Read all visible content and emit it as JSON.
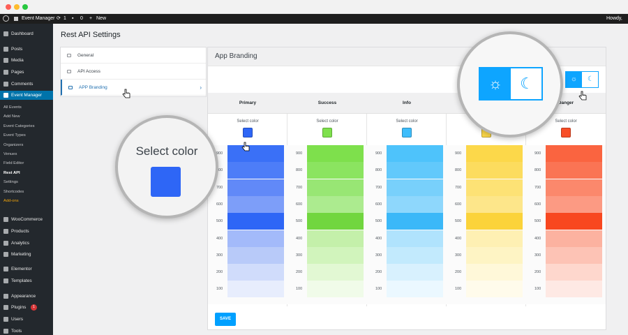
{
  "adminbar": {
    "site_name": "Event Manager",
    "updates": "1",
    "comments": "0",
    "new_label": "New",
    "howdy": "Howdy, ad"
  },
  "sidebar": {
    "items": [
      {
        "label": "Dashboard",
        "icon": "dashboard-icon"
      },
      {
        "label": "Posts",
        "icon": "pin-icon"
      },
      {
        "label": "Media",
        "icon": "media-icon"
      },
      {
        "label": "Pages",
        "icon": "pages-icon"
      },
      {
        "label": "Comments",
        "icon": "comment-icon"
      },
      {
        "label": "Event Manager",
        "icon": "calendar-icon",
        "active": true
      },
      {
        "label": "WooCommerce",
        "icon": "woocommerce-icon"
      },
      {
        "label": "Products",
        "icon": "products-icon"
      },
      {
        "label": "Analytics",
        "icon": "analytics-icon"
      },
      {
        "label": "Marketing",
        "icon": "marketing-icon"
      },
      {
        "label": "Elementor",
        "icon": "elementor-icon"
      },
      {
        "label": "Templates",
        "icon": "templates-icon"
      },
      {
        "label": "Appearance",
        "icon": "appearance-icon"
      },
      {
        "label": "Plugins",
        "icon": "plugins-icon",
        "badge": "1"
      },
      {
        "label": "Users",
        "icon": "users-icon"
      },
      {
        "label": "Tools",
        "icon": "tools-icon"
      }
    ],
    "submenu": [
      "All Events",
      "Add New",
      "Event Categories",
      "Event Types",
      "Organizers",
      "Venues",
      "Field Editor",
      "Rest API",
      "Settings",
      "Shortcodes",
      "Add-ons"
    ]
  },
  "page_title": "Rest API Settings",
  "tabs": [
    {
      "label": "General",
      "icon": "settings-icon"
    },
    {
      "label": "API Access",
      "icon": "api-icon"
    },
    {
      "label": "APP Branding",
      "icon": "mobile-icon",
      "active": true
    }
  ],
  "panel": {
    "title": "App Branding",
    "save_label": "SAVE"
  },
  "theme_toggle": {
    "light_icon": "sun-icon",
    "dark_icon": "moon-icon",
    "selected": "light"
  },
  "select_color_label": "Select color",
  "palettes": [
    {
      "name": "Primary",
      "color": "#2e66f6",
      "shades": {
        "900": "#3a70f7",
        "800": "#4d7df8",
        "700": "#6189f8",
        "600": "#7d9ef9",
        "500": "#2e66f6",
        "400": "#a3bafa",
        "300": "#b8caf9",
        "200": "#d0dcfb",
        "100": "#e7edfd"
      }
    },
    {
      "name": "Success",
      "color": "#7ee04c",
      "shades": {
        "900": "#7ee04c",
        "800": "#8be460",
        "700": "#98e674",
        "600": "#aceb8f",
        "500": "#71d63f",
        "400": "#c4f0aa",
        "300": "#d1f4bc",
        "200": "#e2f8d3",
        "100": "#f0fbe9"
      }
    },
    {
      "name": "Info",
      "color": "#3ebdfb",
      "shades": {
        "900": "#4ec3fb",
        "800": "#62c9fb",
        "700": "#78d0fb",
        "600": "#8ed7fc",
        "500": "#3bb8f8",
        "400": "#b0e3fd",
        "300": "#c2eafd",
        "200": "#d8f1fe",
        "100": "#ebf8ff"
      }
    },
    {
      "name": "",
      "color": "#fcd84a",
      "shades": {
        "900": "#fcd84a",
        "800": "#fcdc5e",
        "700": "#fde275",
        "600": "#fde68a",
        "500": "#fbd33a",
        "400": "#fef0b3",
        "300": "#fef4c4",
        "200": "#fff8d9",
        "100": "#fffbeb"
      }
    },
    {
      "name": "Danger",
      "color": "#f84e27",
      "shades": {
        "900": "#fa6440",
        "800": "#fa7454",
        "700": "#fb886c",
        "600": "#fc9a83",
        "500": "#f8471f",
        "400": "#fcb2a0",
        "300": "#fdc3b5",
        "200": "#fed7cd",
        "100": "#fee9e4"
      }
    }
  ],
  "shade_levels": [
    "900",
    "800",
    "700",
    "600",
    "500",
    "400",
    "300",
    "200",
    "100"
  ],
  "magnifier_color": {
    "label": "Select color"
  }
}
